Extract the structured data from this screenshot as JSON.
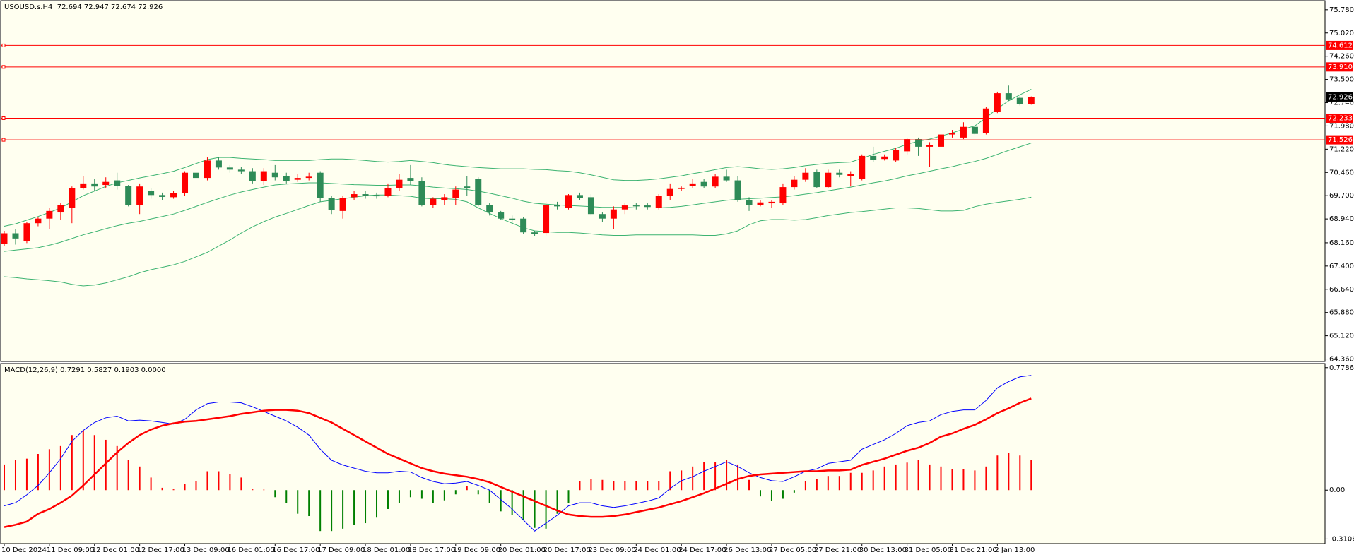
{
  "chart_data": [
    {
      "type": "candlestick",
      "title": "USOUSD.s.H4  72.694 72.947 72.674 72.926",
      "categories": [
        "10 Dec 2024",
        null,
        null,
        null,
        "11 Dec 09:00",
        null,
        null,
        null,
        "12 Dec 01:00",
        null,
        null,
        null,
        "12 Dec 17:00",
        null,
        null,
        null,
        "13 Dec 09:00",
        null,
        null,
        null,
        "16 Dec 01:00",
        null,
        null,
        null,
        "16 Dec 17:00",
        null,
        null,
        null,
        "17 Dec 09:00",
        null,
        null,
        null,
        "18 Dec 01:00",
        null,
        null,
        null,
        "18 Dec 17:00",
        null,
        null,
        null,
        "19 Dec 09:00",
        null,
        null,
        null,
        "20 Dec 01:00",
        null,
        null,
        null,
        "20 Dec 17:00",
        null,
        null,
        null,
        "23 Dec 09:00",
        null,
        null,
        null,
        "24 Dec 01:00",
        null,
        null,
        null,
        "24 Dec 17:00",
        null,
        null,
        null,
        "26 Dec 13:00",
        null,
        null,
        null,
        "27 Dec 05:00",
        null,
        null,
        null,
        "27 Dec 21:00",
        null,
        null,
        null,
        "30 Dec 13:00",
        null,
        null,
        null,
        "31 Dec 05:00",
        null,
        null,
        null,
        "31 Dec 21:00",
        null,
        null,
        null,
        "2 Jan 13:00",
        null,
        null,
        null
      ],
      "open": [
        68.13,
        68.47,
        68.21,
        68.8,
        68.95,
        69.15,
        69.3,
        69.95,
        70.1,
        70.05,
        70.2,
        70.02,
        69.4,
        69.85,
        69.72,
        69.65,
        69.78,
        70.45,
        70.28,
        70.85,
        70.62,
        70.55,
        70.5,
        70.18,
        70.45,
        70.35,
        70.22,
        70.28,
        70.45,
        69.62,
        69.2,
        69.65,
        69.75,
        69.72,
        69.7,
        69.95,
        70.28,
        70.18,
        69.4,
        69.55,
        69.62,
        70.0,
        70.25,
        69.4,
        69.15,
        68.95,
        68.95,
        68.5,
        68.48,
        69.4,
        69.3,
        69.72,
        69.65,
        69.1,
        68.95,
        69.25,
        69.38,
        69.38,
        69.3,
        69.7,
        69.92,
        70.02,
        70.15,
        70.0,
        70.32,
        70.2,
        69.55,
        69.4,
        69.45,
        69.45,
        69.98,
        70.22,
        70.48,
        69.98,
        70.45,
        70.35,
        70.25,
        71.0,
        70.9,
        70.85,
        71.15,
        71.55,
        71.3,
        71.3,
        71.7,
        71.6,
        71.95,
        71.75,
        72.45,
        73.05,
        72.9,
        72.694
      ],
      "high": [
        68.55,
        68.6,
        68.85,
        69.0,
        69.3,
        69.45,
        70.0,
        70.35,
        70.25,
        70.3,
        70.45,
        70.05,
        70.1,
        69.95,
        69.8,
        69.85,
        70.5,
        70.6,
        70.95,
        70.95,
        70.7,
        70.65,
        70.6,
        70.6,
        70.7,
        70.45,
        70.4,
        70.45,
        70.5,
        69.7,
        69.7,
        69.85,
        69.85,
        69.8,
        70.1,
        70.4,
        70.7,
        70.3,
        69.65,
        69.75,
        70.0,
        70.35,
        70.3,
        69.45,
        69.2,
        69.05,
        69.0,
        68.55,
        69.5,
        69.5,
        69.75,
        69.8,
        69.75,
        69.15,
        69.35,
        69.45,
        69.45,
        69.45,
        69.75,
        70.1,
        70.0,
        70.25,
        70.25,
        70.4,
        70.55,
        70.35,
        69.65,
        69.55,
        69.55,
        70.1,
        70.35,
        70.6,
        70.55,
        70.55,
        70.55,
        70.5,
        71.05,
        71.3,
        71.05,
        71.25,
        71.6,
        71.6,
        71.45,
        71.75,
        71.85,
        72.1,
        72.0,
        72.6,
        73.1,
        73.3,
        72.95,
        72.947
      ],
      "low": [
        68.05,
        68.1,
        68.15,
        68.7,
        68.6,
        68.9,
        68.8,
        69.9,
        69.85,
        69.95,
        69.9,
        69.35,
        69.1,
        69.6,
        69.55,
        69.6,
        69.7,
        70.05,
        70.2,
        70.55,
        70.45,
        70.4,
        70.1,
        70.05,
        70.2,
        70.1,
        70.15,
        70.2,
        69.5,
        69.1,
        68.95,
        69.55,
        69.6,
        69.6,
        69.65,
        69.85,
        70.05,
        69.35,
        69.3,
        69.4,
        69.4,
        69.7,
        69.35,
        69.05,
        68.9,
        68.8,
        68.45,
        68.38,
        68.4,
        69.25,
        69.25,
        69.55,
        69.05,
        68.85,
        68.6,
        69.1,
        69.25,
        69.25,
        69.25,
        69.55,
        69.85,
        69.95,
        69.95,
        69.95,
        70.15,
        69.5,
        69.2,
        69.35,
        69.3,
        69.4,
        69.9,
        70.15,
        69.95,
        69.95,
        70.3,
        70.0,
        70.2,
        70.8,
        70.85,
        70.8,
        71.05,
        71.0,
        70.65,
        71.25,
        71.6,
        71.55,
        71.7,
        71.7,
        72.4,
        72.8,
        72.65,
        72.674
      ],
      "close": [
        68.47,
        68.3,
        68.8,
        68.95,
        69.2,
        69.4,
        69.95,
        70.1,
        70.0,
        70.15,
        70.02,
        69.4,
        70.0,
        69.72,
        69.66,
        69.78,
        70.45,
        70.28,
        70.85,
        70.62,
        70.55,
        70.5,
        70.18,
        70.5,
        70.3,
        70.18,
        70.28,
        70.32,
        69.62,
        69.22,
        69.62,
        69.75,
        69.7,
        69.68,
        69.95,
        70.22,
        70.18,
        69.4,
        69.6,
        69.65,
        69.9,
        69.95,
        69.4,
        69.15,
        68.95,
        68.9,
        68.5,
        68.45,
        69.4,
        69.35,
        69.72,
        69.62,
        69.1,
        68.95,
        69.25,
        69.38,
        69.35,
        69.33,
        69.7,
        69.92,
        69.96,
        70.1,
        70.0,
        70.32,
        70.2,
        69.55,
        69.4,
        69.48,
        69.5,
        69.98,
        70.22,
        70.45,
        69.98,
        70.45,
        70.38,
        70.4,
        71.0,
        70.88,
        70.98,
        71.2,
        71.55,
        71.3,
        71.35,
        71.7,
        71.75,
        71.95,
        71.72,
        72.55,
        73.05,
        72.85,
        72.7,
        72.926
      ],
      "up_color": "#ff0000",
      "down_color": "#2e8b57",
      "series": [
        {
          "color": "#3cb371",
          "values": [
            68.7,
            68.78,
            68.9,
            69.02,
            69.15,
            69.3,
            69.5,
            69.7,
            69.85,
            70.0,
            70.12,
            70.2,
            70.28,
            70.35,
            70.42,
            70.5,
            70.62,
            70.75,
            70.88,
            70.95,
            70.95,
            70.92,
            70.9,
            70.88,
            70.85,
            70.85,
            70.85,
            70.85,
            70.88,
            70.9,
            70.9,
            70.88,
            70.85,
            70.82,
            70.8,
            70.82,
            70.85,
            70.82,
            70.78,
            70.72,
            70.68,
            70.65,
            70.62,
            70.6,
            70.58,
            70.58,
            70.58,
            70.56,
            70.55,
            70.52,
            70.5,
            70.45,
            70.38,
            70.3,
            70.22,
            70.2,
            70.2,
            70.22,
            70.25,
            70.3,
            70.35,
            70.42,
            70.48,
            70.55,
            70.62,
            70.65,
            70.62,
            70.58,
            70.56,
            70.58,
            70.62,
            70.68,
            70.72,
            70.76,
            70.78,
            70.8,
            70.92,
            71.05,
            71.15,
            71.25,
            71.38,
            71.48,
            71.55,
            71.65,
            71.75,
            71.88,
            71.98,
            72.25,
            72.55,
            72.8,
            73.0,
            73.18
          ]
        },
        {
          "color": "#3cb371",
          "values": [
            67.88,
            67.92,
            67.96,
            68.0,
            68.08,
            68.18,
            68.3,
            68.42,
            68.52,
            68.62,
            68.72,
            68.8,
            68.86,
            68.94,
            69.02,
            69.1,
            69.22,
            69.35,
            69.48,
            69.6,
            69.72,
            69.82,
            69.9,
            69.98,
            70.05,
            70.08,
            70.1,
            70.12,
            70.12,
            70.1,
            70.08,
            70.06,
            70.05,
            70.04,
            70.04,
            70.05,
            70.05,
            70.02,
            69.98,
            69.95,
            69.93,
            69.9,
            69.85,
            69.78,
            69.7,
            69.62,
            69.52,
            69.45,
            69.42,
            69.4,
            69.38,
            69.36,
            69.34,
            69.32,
            69.32,
            69.32,
            69.3,
            69.3,
            69.3,
            69.32,
            69.35,
            69.4,
            69.45,
            69.5,
            69.55,
            69.58,
            69.6,
            69.62,
            69.64,
            69.66,
            69.7,
            69.75,
            69.8,
            69.86,
            69.92,
            69.98,
            70.05,
            70.12,
            70.18,
            70.26,
            70.35,
            70.42,
            70.5,
            70.58,
            70.65,
            70.74,
            70.82,
            70.92,
            71.05,
            71.18,
            71.3,
            71.42
          ]
        },
        {
          "color": "#3cb371",
          "values": [
            67.05,
            67.02,
            66.98,
            66.95,
            66.92,
            66.88,
            66.8,
            66.75,
            66.78,
            66.85,
            66.95,
            67.05,
            67.18,
            67.28,
            67.36,
            67.44,
            67.55,
            67.7,
            67.85,
            68.05,
            68.25,
            68.48,
            68.68,
            68.85,
            69.0,
            69.12,
            69.25,
            69.38,
            69.5,
            69.55,
            69.6,
            69.65,
            69.7,
            69.72,
            69.72,
            69.7,
            69.68,
            69.62,
            69.6,
            69.6,
            69.58,
            69.5,
            69.3,
            69.12,
            68.95,
            68.8,
            68.65,
            68.55,
            68.52,
            68.5,
            68.5,
            68.48,
            68.45,
            68.42,
            68.4,
            68.4,
            68.42,
            68.42,
            68.42,
            68.42,
            68.42,
            68.42,
            68.4,
            68.4,
            68.45,
            68.55,
            68.75,
            68.88,
            68.92,
            68.92,
            68.9,
            68.92,
            68.98,
            69.05,
            69.1,
            69.15,
            69.18,
            69.22,
            69.26,
            69.3,
            69.3,
            69.28,
            69.24,
            69.2,
            69.2,
            69.22,
            69.34,
            69.42,
            69.48,
            69.53,
            69.58,
            69.65
          ]
        }
      ],
      "hlines": [
        {
          "value": 74.612,
          "color": "#ff0000"
        },
        {
          "value": 73.91,
          "label": "73.910",
          "color": "#ff0000"
        },
        {
          "value": 72.926,
          "color": "#000000"
        },
        {
          "value": 72.233,
          "color": "#ff0000"
        },
        {
          "value": 71.526,
          "color": "#ff0000"
        }
      ],
      "ylim": [
        64.28,
        76.03
      ],
      "yticks": [
        {
          "value": 75.78,
          "label": "75.780"
        },
        {
          "value": 75.02,
          "label": "75.020"
        },
        {
          "value": 74.26,
          "label": "74.260"
        },
        {
          "value": 73.5,
          "label": "73.500"
        },
        {
          "value": 72.74,
          "label": "72.740"
        },
        {
          "value": 71.98,
          "label": "71.980"
        },
        {
          "value": 71.22,
          "label": "71.220"
        },
        {
          "value": 70.46,
          "label": "70.460"
        },
        {
          "value": 69.7,
          "label": "69.700"
        },
        {
          "value": 68.94,
          "label": "68.940"
        },
        {
          "value": 68.16,
          "label": "68.160"
        },
        {
          "value": 67.4,
          "label": "67.400"
        },
        {
          "value": 66.64,
          "label": "66.640"
        },
        {
          "value": 65.88,
          "label": "65.880"
        },
        {
          "value": 65.12,
          "label": "65.120"
        },
        {
          "value": 64.36,
          "label": "64.360"
        }
      ]
    },
    {
      "type": "macd",
      "title": "MACD(12,26,9) 0.7291 0.5827 0.1903 0.0000",
      "histogram": {
        "up_color": "#ff0000",
        "down_color": "#008000",
        "values": [
          0.163,
          0.19,
          0.2,
          0.23,
          0.26,
          0.28,
          0.35,
          0.38,
          0.35,
          0.32,
          0.28,
          0.19,
          0.15,
          0.08,
          0.015,
          0.005,
          0.04,
          0.055,
          0.12,
          0.12,
          0.1,
          0.08,
          0.005,
          0.003,
          -0.045,
          -0.08,
          -0.15,
          -0.165,
          -0.26,
          -0.26,
          -0.245,
          -0.22,
          -0.21,
          -0.175,
          -0.12,
          -0.08,
          -0.045,
          -0.055,
          -0.08,
          -0.065,
          -0.027,
          0.027,
          -0.027,
          -0.08,
          -0.135,
          -0.16,
          -0.19,
          -0.24,
          -0.245,
          -0.15,
          -0.08,
          0.055,
          0.07,
          0.065,
          0.055,
          0.055,
          0.055,
          0.055,
          0.055,
          0.12,
          0.125,
          0.15,
          0.18,
          0.18,
          0.19,
          0.163,
          0.065,
          -0.04,
          -0.07,
          -0.055,
          -0.016,
          0.055,
          0.07,
          0.09,
          0.09,
          0.11,
          0.11,
          0.125,
          0.15,
          0.163,
          0.175,
          0.19,
          0.163,
          0.15,
          0.135,
          0.135,
          0.125,
          0.15,
          0.22,
          0.235,
          0.22,
          0.1903
        ]
      },
      "series": [
        {
          "color": "#0000ff",
          "width": 1,
          "values": [
            -0.1,
            -0.08,
            -0.03,
            0.03,
            0.11,
            0.2,
            0.31,
            0.38,
            0.43,
            0.46,
            0.47,
            0.44,
            0.445,
            0.44,
            0.43,
            0.42,
            0.45,
            0.51,
            0.55,
            0.56,
            0.56,
            0.555,
            0.53,
            0.5,
            0.47,
            0.44,
            0.4,
            0.35,
            0.26,
            0.19,
            0.16,
            0.14,
            0.12,
            0.11,
            0.11,
            0.12,
            0.115,
            0.08,
            0.055,
            0.04,
            0.045,
            0.055,
            0.03,
            0.0,
            -0.06,
            -0.12,
            -0.19,
            -0.26,
            -0.21,
            -0.16,
            -0.1,
            -0.08,
            -0.08,
            -0.1,
            -0.11,
            -0.1,
            -0.085,
            -0.07,
            -0.05,
            0.01,
            0.06,
            0.085,
            0.12,
            0.15,
            0.18,
            0.15,
            0.11,
            0.08,
            0.06,
            0.055,
            0.085,
            0.12,
            0.135,
            0.17,
            0.18,
            0.19,
            0.26,
            0.29,
            0.32,
            0.36,
            0.41,
            0.43,
            0.44,
            0.48,
            0.5,
            0.51,
            0.51,
            0.57,
            0.65,
            0.69,
            0.72,
            0.7291
          ]
        },
        {
          "color": "#ff0000",
          "width": 2.5,
          "values": [
            -0.235,
            -0.22,
            -0.2,
            -0.15,
            -0.12,
            -0.08,
            -0.035,
            0.03,
            0.1,
            0.17,
            0.24,
            0.3,
            0.35,
            0.385,
            0.41,
            0.425,
            0.435,
            0.44,
            0.45,
            0.46,
            0.47,
            0.485,
            0.495,
            0.505,
            0.51,
            0.51,
            0.505,
            0.49,
            0.46,
            0.43,
            0.39,
            0.35,
            0.31,
            0.27,
            0.23,
            0.2,
            0.17,
            0.14,
            0.12,
            0.105,
            0.095,
            0.085,
            0.07,
            0.05,
            0.02,
            -0.01,
            -0.04,
            -0.07,
            -0.1,
            -0.13,
            -0.155,
            -0.165,
            -0.17,
            -0.17,
            -0.165,
            -0.155,
            -0.14,
            -0.125,
            -0.11,
            -0.09,
            -0.07,
            -0.045,
            -0.02,
            0.01,
            0.04,
            0.07,
            0.09,
            0.1,
            0.105,
            0.11,
            0.115,
            0.12,
            0.12,
            0.125,
            0.125,
            0.13,
            0.16,
            0.18,
            0.2,
            0.225,
            0.25,
            0.27,
            0.3,
            0.34,
            0.36,
            0.39,
            0.415,
            0.45,
            0.49,
            0.52,
            0.555,
            0.5827
          ]
        }
      ],
      "ylim": [
        -0.34,
        0.8
      ],
      "yticks": [
        0.7786,
        {
          "value": 0,
          "label": "0.00"
        },
        -0.3106
      ]
    }
  ]
}
